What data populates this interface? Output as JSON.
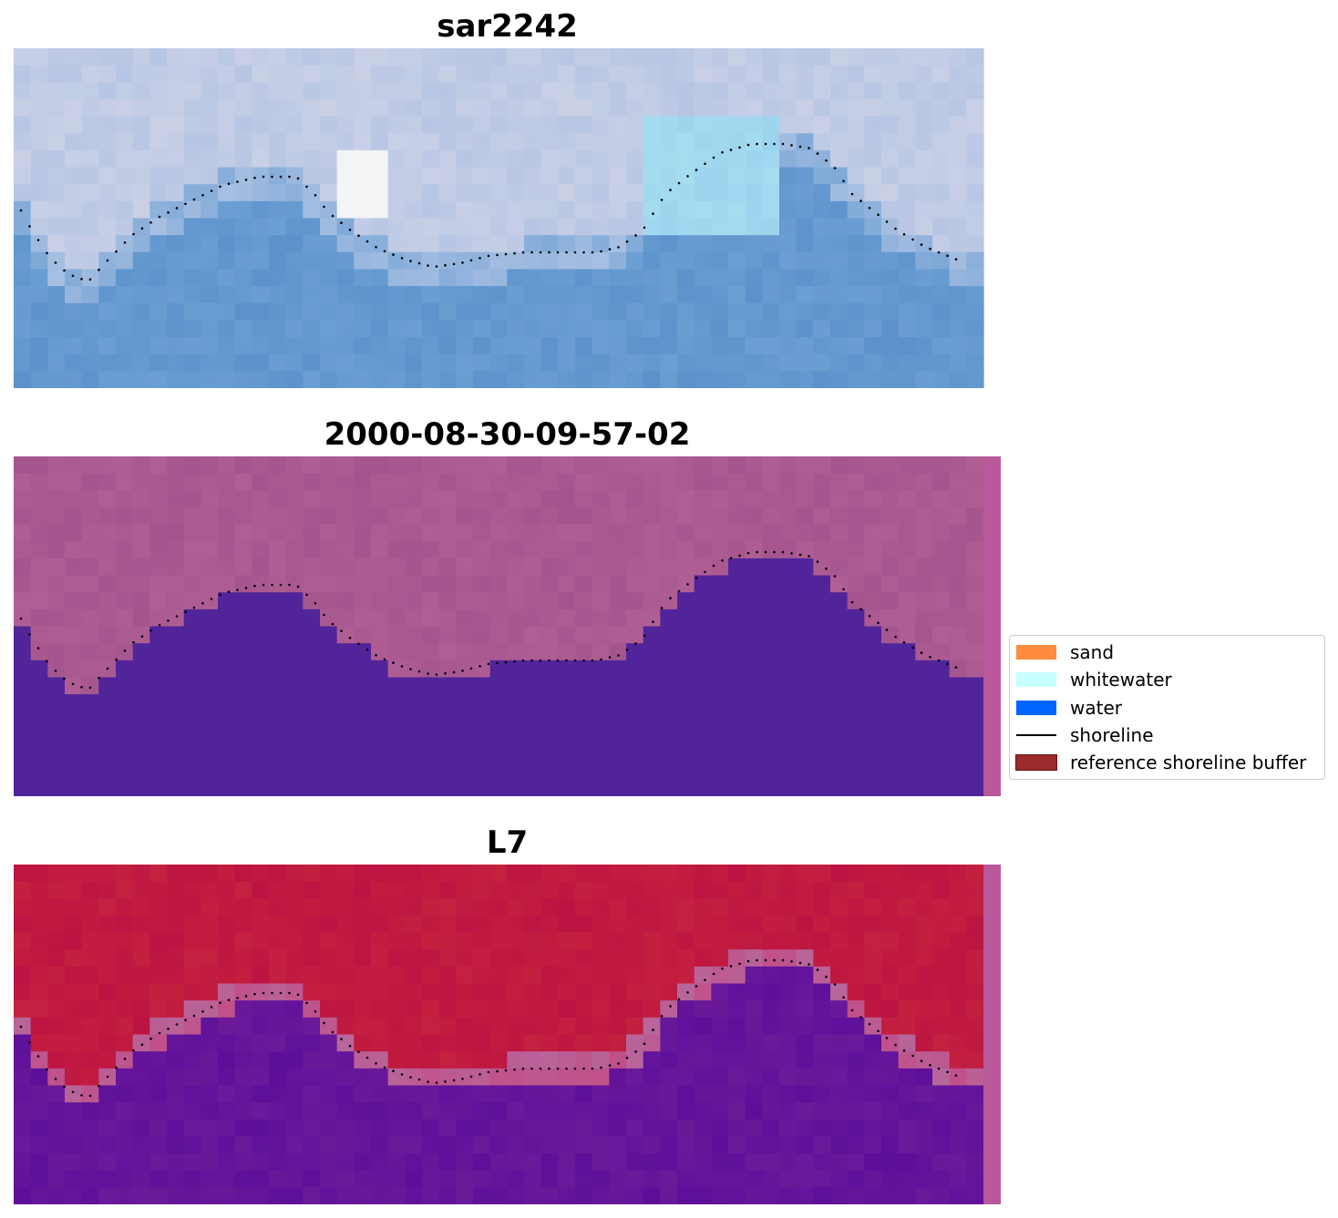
{
  "panels": [
    {
      "title": "sar2242",
      "scheme": "rgb"
    },
    {
      "title": "2000-08-30-09-57-02",
      "scheme": "classified"
    },
    {
      "title": "L7",
      "scheme": "index"
    }
  ],
  "legend": {
    "items": [
      {
        "label": "sand",
        "kind": "patch",
        "color": "#ff8c3c"
      },
      {
        "label": "whitewater",
        "kind": "patch",
        "color": "#c8ffff"
      },
      {
        "label": "water",
        "kind": "patch",
        "color": "#0064ff"
      },
      {
        "label": "shoreline",
        "kind": "line",
        "color": "#000000"
      },
      {
        "label": "reference shoreline buffer",
        "kind": "patch",
        "color": "#9b2a2a"
      }
    ]
  },
  "colors": {
    "water_class": "#51249a",
    "buffer_overlay": "#b9589a",
    "land_index": "#c0143a",
    "water_index": "#6a1a99",
    "shoreline_dots": "#000000"
  }
}
